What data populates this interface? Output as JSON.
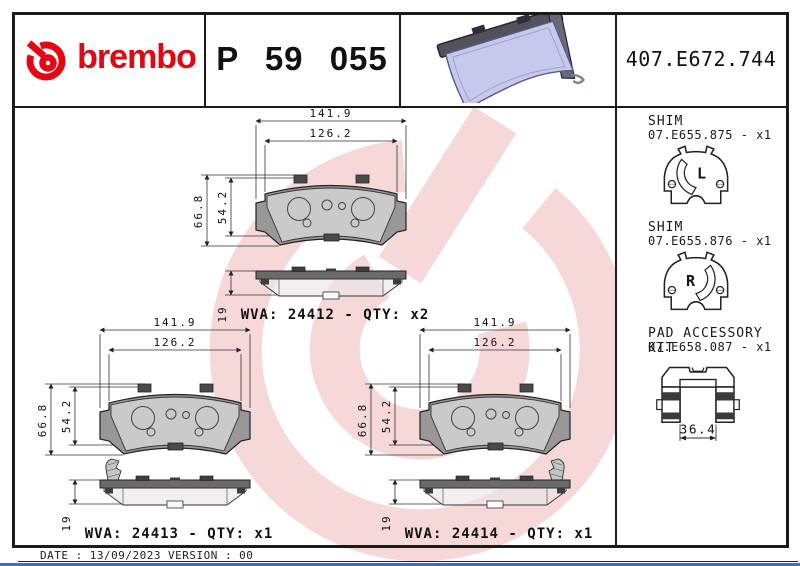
{
  "header": {
    "brand_wordmark": "brembo",
    "part_number": "P 59 055",
    "catalog_number": "407.E672.744"
  },
  "dims": {
    "overall_width": "141.9",
    "pad_width": "126.2",
    "overall_height": "66.8",
    "pad_height": "54.2",
    "thickness": "19"
  },
  "drawings": [
    {
      "wva": "WVA: 24412 - QTY: x2",
      "indicator": "none"
    },
    {
      "wva": "WVA: 24413 - QTY: x1",
      "indicator": "left"
    },
    {
      "wva": "WVA: 24414 - QTY: x1",
      "indicator": "right"
    }
  ],
  "sidebar": {
    "shims": [
      {
        "title": "SHIM",
        "code": "07.E655.875 - x1",
        "marking": "L"
      },
      {
        "title": "SHIM",
        "code": "07.E655.876 - x1",
        "marking": "R"
      }
    ],
    "accessory": {
      "title": "PAD ACCESSORY KIT",
      "code": "07.E658.087 - x1",
      "width": "36.4"
    }
  },
  "footer": {
    "date_label": "DATE :",
    "date": "13/09/2023",
    "version_label": "VERSION :",
    "version": "00"
  },
  "colors": {
    "brand_red": "#e30613",
    "watermark_pink": "#f7d8d9",
    "backplate_gray": "#989898",
    "pad_lavender": "#c6c9ec",
    "bottom_bar_blue": "#3f6fae"
  }
}
